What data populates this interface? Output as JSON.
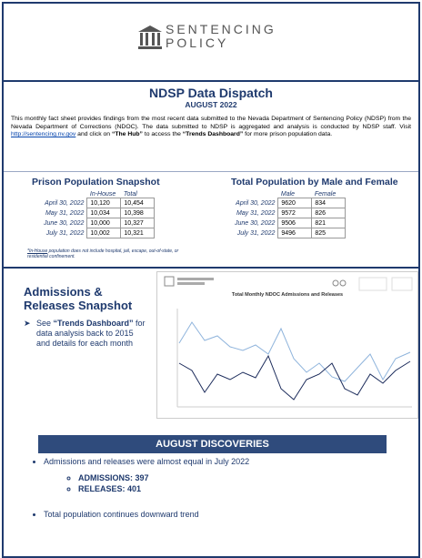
{
  "header": {
    "logo_line1": "SENTENCING",
    "logo_line2": "POLICY",
    "title": "NDSP Data Dispatch",
    "subtitle": "AUGUST 2022"
  },
  "intro": {
    "text1": "This monthly fact sheet provides findings from the most recent data submitted to the Nevada Department of Sentencing Policy (NDSP) from the Nevada Department of Corrections (NDOC). The data submitted to NDSP is aggregated and analysis is conducted by NDSP staff. Visit ",
    "link": "http://sentencing.nv.gov",
    "text2": " and click on ",
    "bold1": "“The Hub”",
    "text3": " to access the ",
    "bold2": "“Trends Dashboard”",
    "text4": " for more prison population data."
  },
  "prison_table": {
    "title": "Prison Population Snapshot",
    "columns": [
      "In-House",
      "Total"
    ],
    "rows": [
      [
        "April 30, 2022",
        "10,120",
        "10,454"
      ],
      [
        "May 31, 2022",
        "10,034",
        "10,398"
      ],
      [
        "June 30, 2022",
        "10,000",
        "10,327"
      ],
      [
        "July 31, 2022",
        "10,002",
        "10,321"
      ]
    ],
    "footnote_label": "*In-House",
    "footnote": " population does not include hospital, jail, escape, out-of-state, or residential confinement."
  },
  "gender_table": {
    "title": "Total Population by Male and Female",
    "columns": [
      "Male",
      "Female"
    ],
    "rows": [
      [
        "April 30, 2022",
        "9620",
        "834"
      ],
      [
        "May 31, 2022",
        "9572",
        "826"
      ],
      [
        "June 30, 2022",
        "9506",
        "821"
      ],
      [
        "July 31, 2022",
        "9496",
        "825"
      ]
    ]
  },
  "admissions": {
    "title": "Admissions & Releases Snapshot",
    "bullet_pre": "See ",
    "bullet_bold": "“Trends Dashboard”",
    "bullet_post": " for data analysis back to 2015 and details for each month",
    "chart_title": "Total Monthly NDOC Admissions and Releases"
  },
  "discoveries": {
    "title": "AUGUST DISCOVERIES",
    "bullet1": "Admissions and releases were almost equal in July 2022",
    "sub": [
      "ADMISSIONS: 397",
      "RELEASES: 401"
    ],
    "bullet2": "Total population continues downward trend"
  }
}
